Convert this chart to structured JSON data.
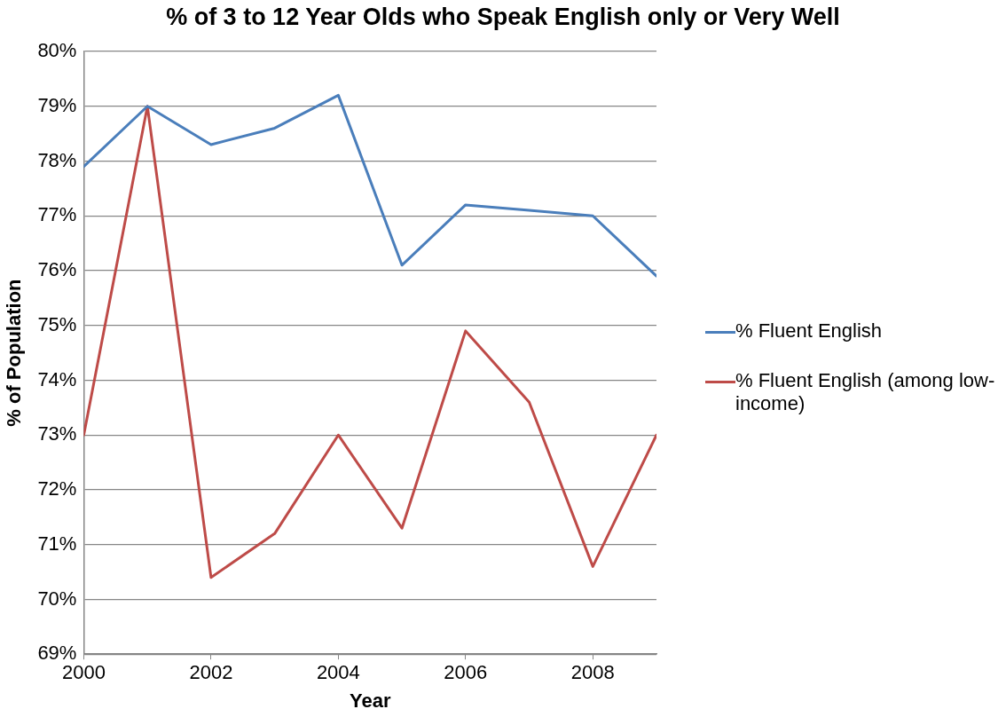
{
  "chart_data": {
    "type": "line",
    "title": "% of 3 to 12 Year Olds who Speak English only or Very Well",
    "xlabel": "Year",
    "ylabel": "% of Population",
    "x": [
      2000,
      2001,
      2002,
      2003,
      2004,
      2005,
      2006,
      2007,
      2008,
      2009
    ],
    "series": [
      {
        "name": "% Fluent English",
        "color": "#4a7ebb",
        "values": [
          77.9,
          79.0,
          78.3,
          78.6,
          79.2,
          76.1,
          77.2,
          77.1,
          77.0,
          75.9
        ]
      },
      {
        "name": "% Fluent English (among low-income)",
        "color": "#be4b48",
        "values": [
          73.0,
          79.0,
          70.4,
          71.2,
          73.0,
          71.3,
          74.9,
          73.6,
          70.6,
          73.0
        ]
      }
    ],
    "xlim": [
      2000,
      2009
    ],
    "xticks": [
      2000,
      2002,
      2004,
      2006,
      2008
    ],
    "ylim": [
      69,
      80
    ],
    "yticks": [
      {
        "value": 69,
        "label": "69%"
      },
      {
        "value": 70,
        "label": "70%"
      },
      {
        "value": 71,
        "label": "71%"
      },
      {
        "value": 72,
        "label": "72%"
      },
      {
        "value": 73,
        "label": "73%"
      },
      {
        "value": 74,
        "label": "74%"
      },
      {
        "value": 75,
        "label": "75%"
      },
      {
        "value": 76,
        "label": "76%"
      },
      {
        "value": 77,
        "label": "77%"
      },
      {
        "value": 78,
        "label": "78%"
      },
      {
        "value": 79,
        "label": "79%"
      },
      {
        "value": 80,
        "label": "80%"
      }
    ],
    "grid": "y",
    "legend": "right",
    "marker": "none",
    "line_style": "solid"
  }
}
